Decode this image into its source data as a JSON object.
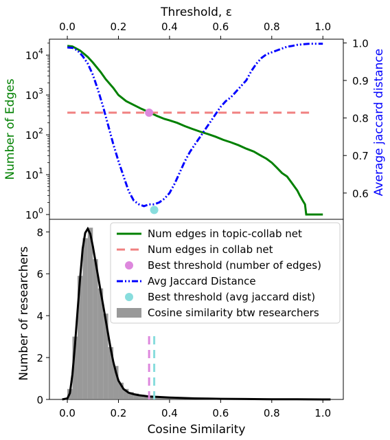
{
  "chart_data": [
    {
      "type": "line",
      "xlabel_top": "Threshold, ε",
      "ylabel_left": "Number of Edges",
      "ylabel_right": "Average jaccard distance",
      "left_color": "#008000",
      "right_color": "#0000ff",
      "xlim": [
        -0.07,
        1.08
      ],
      "xticks": [
        "0.0",
        "0.2",
        "0.4",
        "0.6",
        "0.8",
        "1.0"
      ],
      "xtick_values": [
        0.0,
        0.2,
        0.4,
        0.6,
        0.8,
        1.0
      ],
      "ylim_left_log10": [
        -0.12,
        4.4
      ],
      "yscale_left": "log",
      "yticks_left": [
        {
          "base": "10",
          "exp": "4",
          "value": 10000
        },
        {
          "base": "10",
          "exp": "3",
          "value": 1000
        },
        {
          "base": "10",
          "exp": "2",
          "value": 100
        },
        {
          "base": "10",
          "exp": "1",
          "value": 10
        },
        {
          "base": "10",
          "exp": "0",
          "value": 1
        }
      ],
      "ylim_right": [
        0.53,
        1.01
      ],
      "yticks_right": [
        "1.0",
        "0.9",
        "0.8",
        "0.7",
        "0.6"
      ],
      "ytick_values_right": [
        1.0,
        0.9,
        0.8,
        0.7,
        0.6
      ],
      "series": [
        {
          "axis": "left",
          "color": "#008000",
          "style": "solid",
          "points": [
            [
              0.0,
              17000
            ],
            [
              0.02,
              16500
            ],
            [
              0.05,
              13000
            ],
            [
              0.08,
              9000
            ],
            [
              0.1,
              6500
            ],
            [
              0.13,
              3800
            ],
            [
              0.15,
              2500
            ],
            [
              0.18,
              1500
            ],
            [
              0.2,
              1000
            ],
            [
              0.23,
              700
            ],
            [
              0.26,
              560
            ],
            [
              0.29,
              450
            ],
            [
              0.32,
              370
            ],
            [
              0.35,
              300
            ],
            [
              0.38,
              250
            ],
            [
              0.4,
              230
            ],
            [
              0.43,
              200
            ],
            [
              0.46,
              165
            ],
            [
              0.49,
              140
            ],
            [
              0.52,
              120
            ],
            [
              0.55,
              105
            ],
            [
              0.58,
              90
            ],
            [
              0.61,
              75
            ],
            [
              0.64,
              65
            ],
            [
              0.67,
              55
            ],
            [
              0.7,
              45
            ],
            [
              0.73,
              38
            ],
            [
              0.75,
              32
            ],
            [
              0.78,
              25
            ],
            [
              0.8,
              20
            ],
            [
              0.82,
              15
            ],
            [
              0.84,
              11
            ],
            [
              0.86,
              9
            ],
            [
              0.88,
              6
            ],
            [
              0.9,
              4
            ],
            [
              0.91,
              3
            ],
            [
              0.92,
              2.3
            ],
            [
              0.93,
              1.8
            ],
            [
              0.935,
              1
            ],
            [
              1.0,
              1
            ]
          ]
        },
        {
          "axis": "left",
          "color": "#f08080",
          "style": "dashed",
          "points": [
            [
              0.0,
              360
            ],
            [
              0.95,
              360
            ]
          ]
        },
        {
          "axis": "right",
          "color": "#0000ff",
          "style": "dashdot",
          "points": [
            [
              0.0,
              0.988
            ],
            [
              0.02,
              0.987
            ],
            [
              0.04,
              0.98
            ],
            [
              0.06,
              0.965
            ],
            [
              0.08,
              0.945
            ],
            [
              0.1,
              0.915
            ],
            [
              0.12,
              0.875
            ],
            [
              0.14,
              0.83
            ],
            [
              0.16,
              0.78
            ],
            [
              0.18,
              0.73
            ],
            [
              0.2,
              0.685
            ],
            [
              0.22,
              0.645
            ],
            [
              0.24,
              0.605
            ],
            [
              0.26,
              0.58
            ],
            [
              0.28,
              0.57
            ],
            [
              0.3,
              0.565
            ],
            [
              0.32,
              0.57
            ],
            [
              0.34,
              0.57
            ],
            [
              0.36,
              0.575
            ],
            [
              0.38,
              0.585
            ],
            [
              0.4,
              0.6
            ],
            [
              0.42,
              0.625
            ],
            [
              0.44,
              0.655
            ],
            [
              0.46,
              0.685
            ],
            [
              0.48,
              0.71
            ],
            [
              0.5,
              0.73
            ],
            [
              0.52,
              0.75
            ],
            [
              0.54,
              0.77
            ],
            [
              0.56,
              0.79
            ],
            [
              0.58,
              0.81
            ],
            [
              0.6,
              0.83
            ],
            [
              0.62,
              0.845
            ],
            [
              0.64,
              0.855
            ],
            [
              0.66,
              0.87
            ],
            [
              0.68,
              0.885
            ],
            [
              0.7,
              0.9
            ],
            [
              0.72,
              0.925
            ],
            [
              0.74,
              0.945
            ],
            [
              0.76,
              0.96
            ],
            [
              0.78,
              0.97
            ],
            [
              0.8,
              0.975
            ],
            [
              0.82,
              0.98
            ],
            [
              0.84,
              0.985
            ],
            [
              0.86,
              0.99
            ],
            [
              0.88,
              0.992
            ],
            [
              0.9,
              0.995
            ],
            [
              0.93,
              0.997
            ],
            [
              0.95,
              0.998
            ],
            [
              1.0,
              0.998
            ]
          ]
        }
      ],
      "markers": [
        {
          "axis": "left",
          "x": 0.32,
          "y": 360,
          "color": "#dd88dd"
        },
        {
          "axis": "right",
          "x": 0.34,
          "y": 0.555,
          "color": "#88dddd"
        }
      ]
    },
    {
      "type": "bar",
      "xlabel": "Cosine Similarity",
      "ylabel": "Number of researchers",
      "xlim": [
        -0.07,
        1.08
      ],
      "xticks": [
        "0.0",
        "0.2",
        "0.4",
        "0.6",
        "0.8",
        "1.0"
      ],
      "xtick_values": [
        0.0,
        0.2,
        0.4,
        0.6,
        0.8,
        1.0
      ],
      "ylim": [
        0,
        8.6
      ],
      "yticks": [
        "0",
        "2",
        "4",
        "6",
        "8"
      ],
      "ytick_values": [
        0,
        2,
        4,
        6,
        8
      ],
      "hist_color": "#808080",
      "hist_bin_width": 0.02,
      "hist_x": [
        0.01,
        0.03,
        0.05,
        0.07,
        0.09,
        0.11,
        0.13,
        0.15,
        0.17,
        0.19,
        0.21,
        0.23,
        0.25,
        0.27,
        0.29,
        0.31,
        0.33,
        0.35,
        0.37,
        0.39,
        0.41,
        0.43,
        0.45,
        0.47,
        0.49,
        0.51,
        0.53,
        0.55,
        0.57,
        0.59,
        0.61,
        0.63,
        0.65,
        0.67,
        0.69
      ],
      "hist_values": [
        0.5,
        3.0,
        5.9,
        7.7,
        8.2,
        6.7,
        5.3,
        4.1,
        2.5,
        1.6,
        0.8,
        0.5,
        0.35,
        0.28,
        0.22,
        0.15,
        0.12,
        0.1,
        0.08,
        0.07,
        0.06,
        0.05,
        0.05,
        0.04,
        0.04,
        0.03,
        0.03,
        0.03,
        0.02,
        0.02,
        0.02,
        0.02,
        0.01,
        0.01,
        0.01
      ],
      "kde_color": "#000000",
      "kde": [
        [
          -0.02,
          0.0
        ],
        [
          0.0,
          0.05
        ],
        [
          0.01,
          0.3
        ],
        [
          0.02,
          1.2
        ],
        [
          0.03,
          2.6
        ],
        [
          0.04,
          4.2
        ],
        [
          0.05,
          5.8
        ],
        [
          0.06,
          7.2
        ],
        [
          0.07,
          7.95
        ],
        [
          0.08,
          8.15
        ],
        [
          0.09,
          7.9
        ],
        [
          0.1,
          7.3
        ],
        [
          0.11,
          6.6
        ],
        [
          0.12,
          5.9
        ],
        [
          0.13,
          5.2
        ],
        [
          0.14,
          4.5
        ],
        [
          0.15,
          3.8
        ],
        [
          0.16,
          3.1
        ],
        [
          0.17,
          2.4
        ],
        [
          0.18,
          1.8
        ],
        [
          0.19,
          1.3
        ],
        [
          0.2,
          0.9
        ],
        [
          0.22,
          0.5
        ],
        [
          0.24,
          0.32
        ],
        [
          0.26,
          0.25
        ],
        [
          0.28,
          0.2
        ],
        [
          0.3,
          0.17
        ],
        [
          0.32,
          0.14
        ],
        [
          0.35,
          0.12
        ],
        [
          0.4,
          0.09
        ],
        [
          0.45,
          0.07
        ],
        [
          0.5,
          0.05
        ],
        [
          0.55,
          0.04
        ],
        [
          0.6,
          0.03
        ],
        [
          0.7,
          0.02
        ],
        [
          0.8,
          0.01
        ],
        [
          0.9,
          0.005
        ],
        [
          1.0,
          0.0
        ],
        [
          1.03,
          0.0
        ]
      ],
      "vlines": [
        {
          "x": 0.32,
          "color": "#dd88dd",
          "ymax": 3.1
        },
        {
          "x": 0.34,
          "color": "#88dddd",
          "ymax": 3.1
        }
      ],
      "legend_placement": "top-right",
      "legend": [
        {
          "label": "Num edges in topic-collab net",
          "kind": "line",
          "color": "#008000",
          "style": "solid"
        },
        {
          "label": "Num edges in collab net",
          "kind": "line",
          "color": "#f08080",
          "style": "dashed"
        },
        {
          "label": "Best threshold (number of edges)",
          "kind": "marker",
          "color": "#dd88dd"
        },
        {
          "label": "Avg Jaccard Distance",
          "kind": "line",
          "color": "#0000ff",
          "style": "dashdot"
        },
        {
          "label": "Best threshold (avg jaccard dist)",
          "kind": "marker",
          "color": "#88dddd"
        },
        {
          "label": "Cosine similarity btw researchers",
          "kind": "patch",
          "color": "#999999"
        }
      ]
    }
  ]
}
